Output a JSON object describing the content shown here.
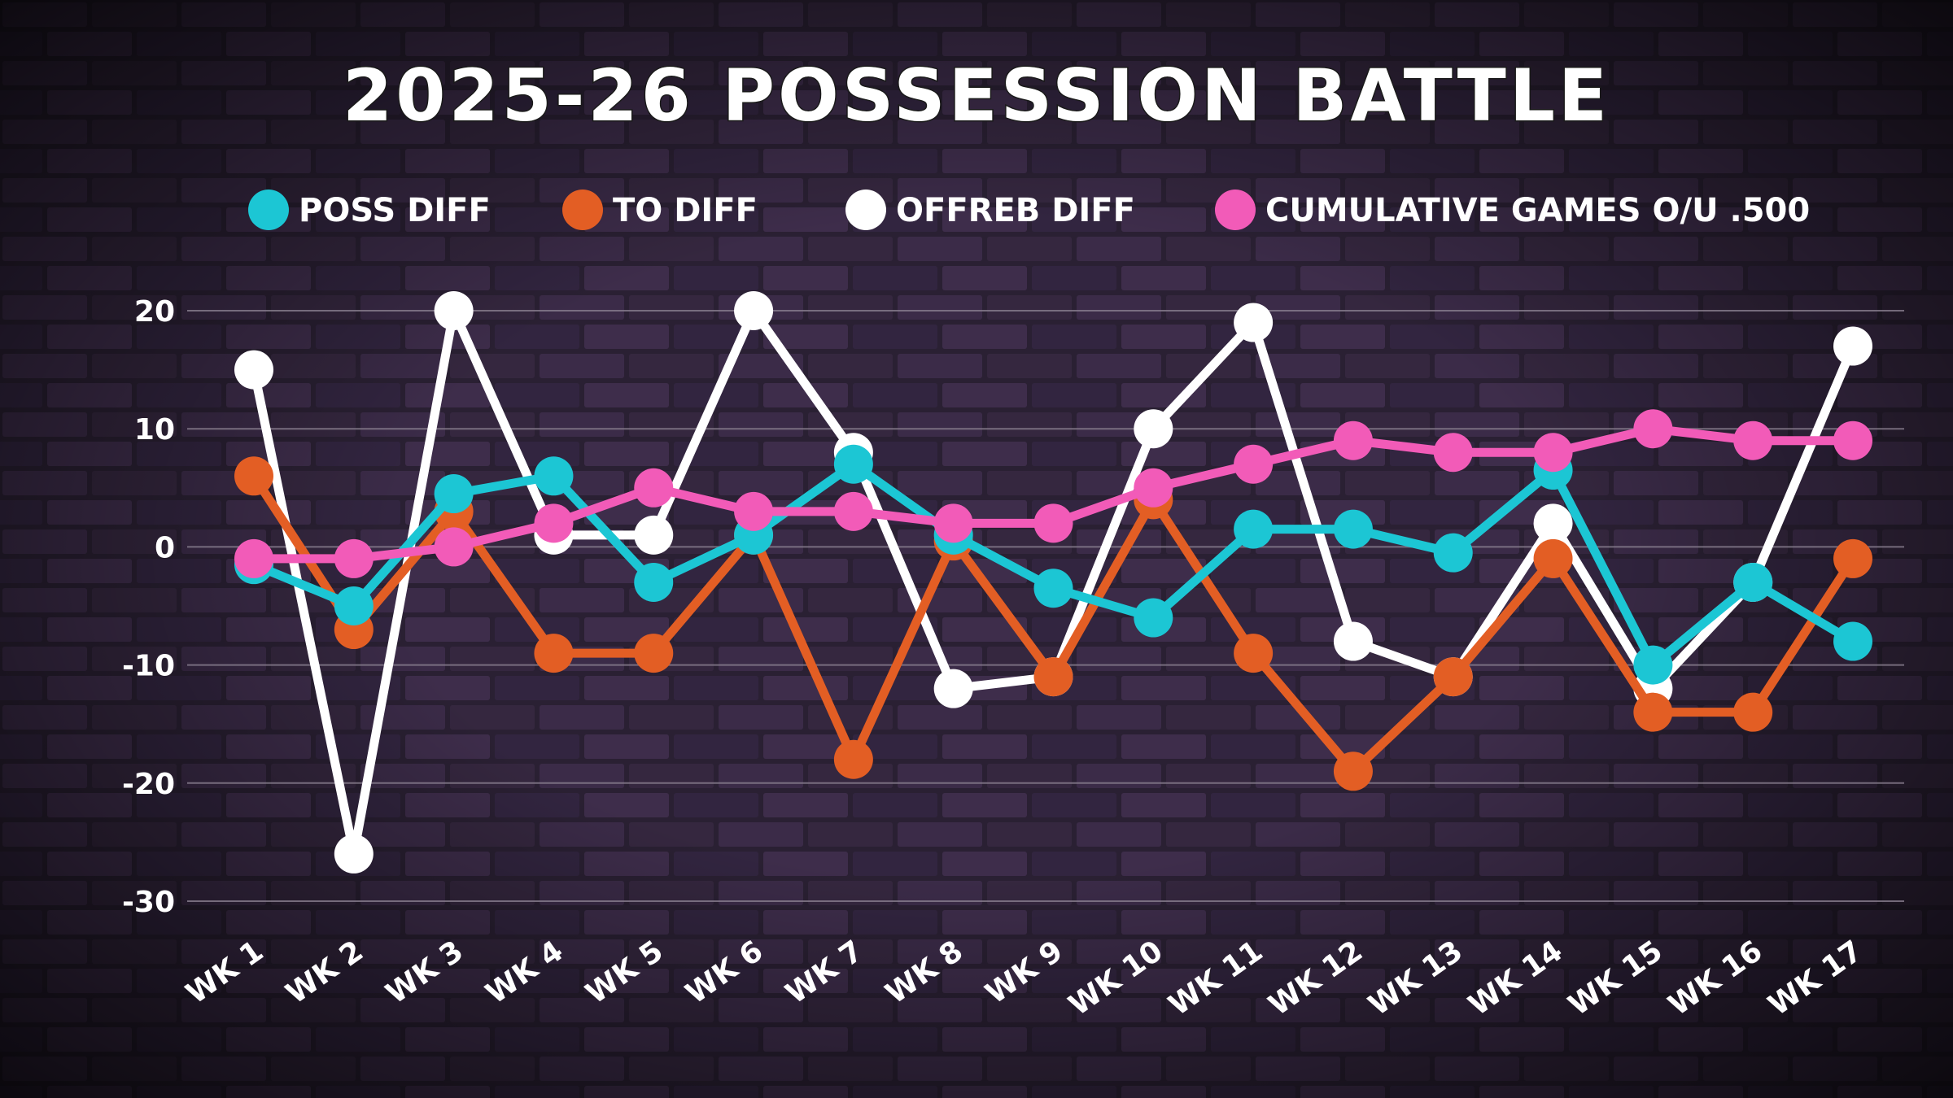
{
  "colors": {
    "background": "#2a1f33",
    "grid": "#8a8090",
    "poss": "#1cc6d4",
    "to": "#e35e24",
    "offreb": "#ffffff",
    "cumulative": "#f25bb8"
  },
  "chart_data": {
    "type": "line",
    "title": "2025-26 POSSESSION BATTLE",
    "xlabel": "",
    "ylabel": "",
    "ylim": [
      -30,
      20
    ],
    "yticks": [
      20,
      10,
      0,
      -10,
      -20,
      -30
    ],
    "ytick_labels": [
      "20",
      "10",
      "0",
      "-10",
      "-20",
      "-30"
    ],
    "grid": true,
    "legend_position": "top",
    "categories": [
      "WK 1",
      "WK 2",
      "WK 3",
      "WK 4",
      "WK 5",
      "WK 6",
      "WK 7",
      "WK 8",
      "WK 9",
      "WK 10",
      "WK 11",
      "WK 12",
      "WK 13",
      "WK 14",
      "WK 15",
      "WK 16",
      "WK 17"
    ],
    "series": [
      {
        "name": "POSS DIFF",
        "color": "#1cc6d4",
        "values": [
          -1.5,
          -5,
          4.5,
          6,
          -3,
          1,
          7,
          1,
          -3.5,
          -6,
          1.5,
          1.5,
          -0.5,
          6.5,
          -10,
          -3,
          -8
        ]
      },
      {
        "name": "TO DIFF",
        "color": "#e35e24",
        "values": [
          6,
          -7,
          3,
          -9,
          -9,
          1,
          -18,
          0.5,
          -11,
          4,
          -9,
          -19,
          -11,
          -1,
          -14,
          -14,
          -1
        ]
      },
      {
        "name": "OFFREB DIFF",
        "color": "#ffffff",
        "values": [
          15,
          -26,
          20,
          1,
          1,
          20,
          8,
          -12,
          -11,
          10,
          19,
          -8,
          -11,
          2,
          -12,
          -3,
          17
        ]
      },
      {
        "name": "CUMULATIVE GAMES O/U .500",
        "color": "#f25bb8",
        "values": [
          -1,
          -1,
          0,
          2,
          5,
          3,
          3,
          2,
          2,
          5,
          7,
          9,
          8,
          8,
          10,
          9,
          9
        ]
      }
    ]
  }
}
